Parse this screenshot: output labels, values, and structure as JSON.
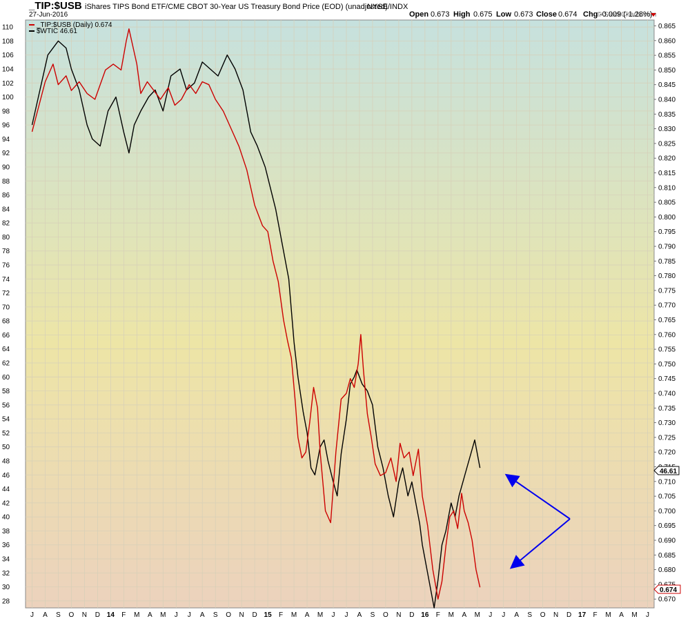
{
  "header": {
    "symbol": "_TIP:$USB",
    "description": "iShares TIPS Bond ETF/CME CBOT 30-Year US Treasury Bond Price (EOD) (unadjusted)",
    "exchange": "NYSE/INDX",
    "date": "27-Jun-2016",
    "watermark": "© StockCharts.com",
    "stats": {
      "open_label": "Open",
      "open": "0.673",
      "high_label": "High",
      "high": "0.675",
      "low_label": "Low",
      "low": "0.673",
      "close_label": "Close",
      "close": "0.674",
      "chg_label": "Chg",
      "chg": "-0.009 (-1.28%)"
    }
  },
  "legend": {
    "ratio_label": "_TIP:$USB (Daily) 0.674",
    "wtic_label": "$WTIC 46.61"
  },
  "colors": {
    "ratio": "#cc0000",
    "wtic": "#000000",
    "arrow": "#0000ee",
    "bg_top": "#c6e1de",
    "bg_mid": "#ede5a6",
    "bg_bottom": "#ecd2bd",
    "grid": "#d6cfb8"
  },
  "chart_data": {
    "type": "line",
    "x_tick_labels": [
      "J",
      "A",
      "S",
      "O",
      "N",
      "D",
      "14",
      "F",
      "M",
      "A",
      "M",
      "J",
      "J",
      "A",
      "S",
      "O",
      "N",
      "D",
      "15",
      "F",
      "M",
      "A",
      "M",
      "J",
      "J",
      "A",
      "S",
      "O",
      "N",
      "D",
      "16",
      "F",
      "M",
      "A",
      "M",
      "J",
      "J",
      "A",
      "S",
      "O",
      "N",
      "D",
      "17",
      "F",
      "M",
      "A",
      "M",
      "J"
    ],
    "x_range": [
      "2013-07",
      "2017-06"
    ],
    "left_axis": {
      "min": 27,
      "max": 111,
      "ticks": [
        28,
        30,
        32,
        34,
        36,
        38,
        40,
        42,
        44,
        46,
        48,
        50,
        52,
        54,
        56,
        58,
        60,
        62,
        64,
        66,
        68,
        70,
        72,
        74,
        76,
        78,
        80,
        82,
        84,
        86,
        88,
        90,
        92,
        94,
        96,
        98,
        100,
        102,
        104,
        106,
        108,
        110
      ]
    },
    "right_axis": {
      "min": 0.667,
      "max": 0.867,
      "ticks": [
        "0.670",
        "0.675",
        "0.680",
        "0.685",
        "0.690",
        "0.695",
        "0.700",
        "0.705",
        "0.710",
        "0.715",
        "0.720",
        "0.725",
        "0.730",
        "0.735",
        "0.740",
        "0.745",
        "0.750",
        "0.755",
        "0.760",
        "0.765",
        "0.770",
        "0.775",
        "0.780",
        "0.785",
        "0.790",
        "0.795",
        "0.800",
        "0.805",
        "0.810",
        "0.815",
        "0.820",
        "0.825",
        "0.830",
        "0.835",
        "0.840",
        "0.845",
        "0.850",
        "0.855",
        "0.860",
        "0.865"
      ]
    },
    "last_value_labels": {
      "wtic": "46.61",
      "ratio": "0.674"
    },
    "series": [
      {
        "name": "$WTIC",
        "axis": "left",
        "x": [
          0,
          1.2,
          2.0,
          2.6,
          3.0,
          3.6,
          4.2,
          4.6,
          5.2,
          5.8,
          6.4,
          7.0,
          7.4,
          7.8,
          8.3,
          8.9,
          9.4,
          10.0,
          10.6,
          11.3,
          11.8,
          12.4,
          13.0,
          13.6,
          14.2,
          14.9,
          15.5,
          16.1,
          16.7,
          17.2,
          17.8,
          18.2,
          18.6,
          19.0,
          19.3,
          19.6,
          20.0,
          20.3,
          20.7,
          21.0,
          21.3,
          21.6,
          22.0,
          22.3,
          22.6,
          23.0,
          23.3,
          23.6,
          24.0,
          24.3,
          24.6,
          24.8,
          25.2,
          25.6,
          26.0,
          26.4,
          26.8,
          27.2,
          27.6,
          28.0,
          28.3,
          28.7,
          29.0,
          29.3,
          29.6,
          29.8,
          30.1,
          30.4,
          30.7,
          31.0,
          31.3,
          31.6,
          32.0,
          32.3,
          32.6,
          32.9,
          33.2,
          33.5,
          33.8,
          34.2
        ],
        "y": [
          96,
          106,
          108,
          107,
          104,
          101,
          96,
          94,
          93,
          98,
          100,
          95,
          92,
          96,
          98,
          100,
          101,
          98,
          103,
          104,
          101,
          102,
          105,
          104,
          103,
          106,
          104,
          101,
          95,
          93,
          90,
          87,
          84,
          80,
          77,
          74,
          65,
          60,
          55,
          52,
          47,
          46,
          50,
          51,
          48,
          45,
          43,
          49,
          54,
          59,
          60,
          61,
          59,
          58,
          56,
          50,
          47,
          43,
          40,
          45,
          47,
          43,
          45,
          42,
          39,
          36,
          33,
          30,
          27,
          31,
          36,
          38,
          42,
          40,
          43,
          45,
          47,
          49,
          51,
          47
        ],
        "last": "46.61"
      },
      {
        "name": "_TIP:$USB",
        "axis": "right",
        "x": [
          0,
          1.0,
          1.6,
          2.0,
          2.6,
          3.0,
          3.6,
          4.2,
          4.8,
          5.6,
          6.2,
          6.8,
          7.2,
          7.4,
          8.0,
          8.3,
          8.8,
          9.3,
          9.8,
          10.4,
          10.9,
          11.4,
          12.0,
          12.5,
          13.0,
          13.5,
          14.0,
          14.6,
          15.2,
          15.8,
          16.4,
          17.0,
          17.6,
          18.0,
          18.4,
          18.8,
          19.2,
          19.5,
          19.8,
          20.1,
          20.3,
          20.6,
          20.9,
          21.2,
          21.5,
          21.8,
          22.0,
          22.4,
          22.8,
          23.2,
          23.6,
          24.0,
          24.3,
          24.6,
          24.9,
          25.1,
          25.3,
          25.6,
          25.9,
          26.2,
          26.6,
          27.0,
          27.4,
          27.8,
          28.1,
          28.4,
          28.8,
          29.1,
          29.5,
          29.8,
          30.2,
          30.6,
          31.0,
          31.3,
          31.6,
          31.9,
          32.2,
          32.5,
          32.8,
          33.0,
          33.3,
          33.6,
          33.9,
          34.2
        ],
        "y": [
          0.829,
          0.846,
          0.852,
          0.845,
          0.848,
          0.843,
          0.846,
          0.842,
          0.84,
          0.85,
          0.852,
          0.85,
          0.86,
          0.864,
          0.852,
          0.842,
          0.846,
          0.843,
          0.84,
          0.844,
          0.838,
          0.84,
          0.845,
          0.842,
          0.846,
          0.845,
          0.84,
          0.836,
          0.83,
          0.824,
          0.816,
          0.804,
          0.797,
          0.795,
          0.785,
          0.778,
          0.765,
          0.758,
          0.752,
          0.737,
          0.725,
          0.718,
          0.72,
          0.73,
          0.742,
          0.735,
          0.72,
          0.7,
          0.696,
          0.72,
          0.738,
          0.74,
          0.745,
          0.742,
          0.75,
          0.76,
          0.748,
          0.733,
          0.725,
          0.716,
          0.712,
          0.713,
          0.718,
          0.71,
          0.723,
          0.718,
          0.72,
          0.712,
          0.721,
          0.705,
          0.695,
          0.68,
          0.67,
          0.676,
          0.688,
          0.698,
          0.7,
          0.694,
          0.706,
          0.7,
          0.696,
          0.69,
          0.68,
          0.674
        ],
        "last": "0.674"
      }
    ]
  }
}
